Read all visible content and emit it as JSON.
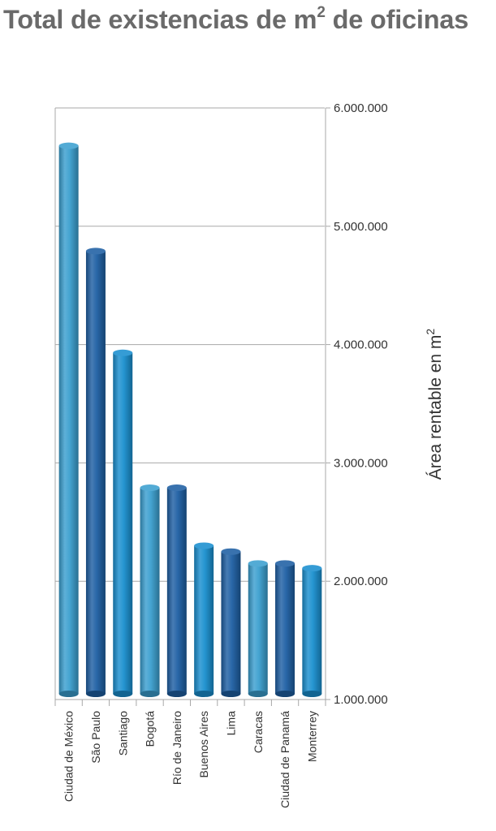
{
  "title": {
    "text": "Total de existencias de m",
    "sup": "2",
    "suffix": " de oficinas"
  },
  "chart_data": {
    "type": "bar",
    "title": "Total de existencias de m² de oficinas",
    "ylabel": "Área rentable en m²",
    "ylabel_parts": {
      "text": "Área rentable en m",
      "sup": "2"
    },
    "categories": [
      "Ciudad de México",
      "São Paulo",
      "Santiago",
      "Bogotá",
      "Río de Janeiro",
      "Buenos Aires",
      "Lima",
      "Caracas",
      "Ciudad de Panamá",
      "Monterrey"
    ],
    "values": [
      5680000,
      4790000,
      3930000,
      2790000,
      2790000,
      2300000,
      2250000,
      2150000,
      2150000,
      2110000
    ],
    "ylim": [
      1000000,
      6000000
    ],
    "yticks": [
      1000000,
      2000000,
      3000000,
      4000000,
      5000000,
      6000000
    ],
    "ytick_labels": [
      "1.000.000",
      "2.000.000",
      "3.000.000",
      "4.000.000",
      "5.000.000",
      "6.000.000"
    ],
    "grid": true,
    "axis_position": "right",
    "colors": [
      "#3b9fcf",
      "#1e5fa3",
      "#1a8fcf",
      "#3b9fcf",
      "#1e5fa3",
      "#1a8fcf",
      "#1e5fa3",
      "#3b9fcf",
      "#1e5fa3",
      "#1a8fcf"
    ]
  }
}
